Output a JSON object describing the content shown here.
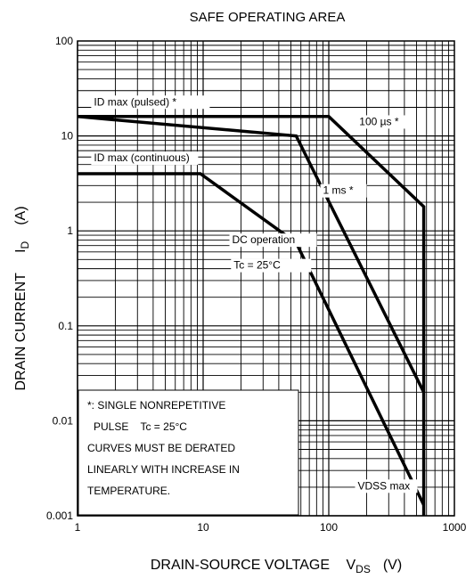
{
  "chart_data": {
    "type": "line",
    "title": "SAFE OPERATING AREA",
    "xlabel": {
      "main": "DRAIN-SOURCE VOLTAGE",
      "symbol": "V",
      "subscript": "DS",
      "unit": "(V)"
    },
    "ylabel": {
      "main": "DRAIN CURRENT",
      "symbol": "I",
      "subscript": "D",
      "unit": "(A)"
    },
    "x_scale": "log",
    "y_scale": "log",
    "xlim": [
      1,
      1000
    ],
    "ylim": [
      0.001,
      100
    ],
    "x_ticks": [
      "1",
      "10",
      "100",
      "1000"
    ],
    "y_ticks": [
      "0.001",
      "0.01",
      "0.1",
      "1",
      "10",
      "100"
    ],
    "grid": true,
    "series": [
      {
        "name": "100 µs *",
        "x": [
          1,
          100,
          570,
          570
        ],
        "y": [
          16,
          16,
          1.8,
          0.001
        ]
      },
      {
        "name": "1 ms *",
        "x": [
          1,
          55,
          570
        ],
        "y": [
          16,
          10,
          0.02
        ]
      },
      {
        "name": "DC operation Tc = 25°C",
        "x": [
          1,
          9.5,
          55,
          570
        ],
        "y": [
          4,
          4,
          0.75,
          0.0013
        ]
      }
    ],
    "annotations": {
      "id_pulsed": "ID max (pulsed) *",
      "id_continuous": "ID max (continuous)",
      "us100": "100 µs *",
      "ms1": "1 ms *",
      "dc_line1": "DC operation",
      "dc_line2": "Tc = 25°C",
      "vdss": "VDSS max"
    },
    "note_lines": [
      "*: SINGLE NONREPETITIVE",
      "PULSE    Tc = 25°C",
      "CURVES MUST BE DERATED",
      "LINEARLY WITH INCREASE IN",
      "TEMPERATURE."
    ]
  }
}
